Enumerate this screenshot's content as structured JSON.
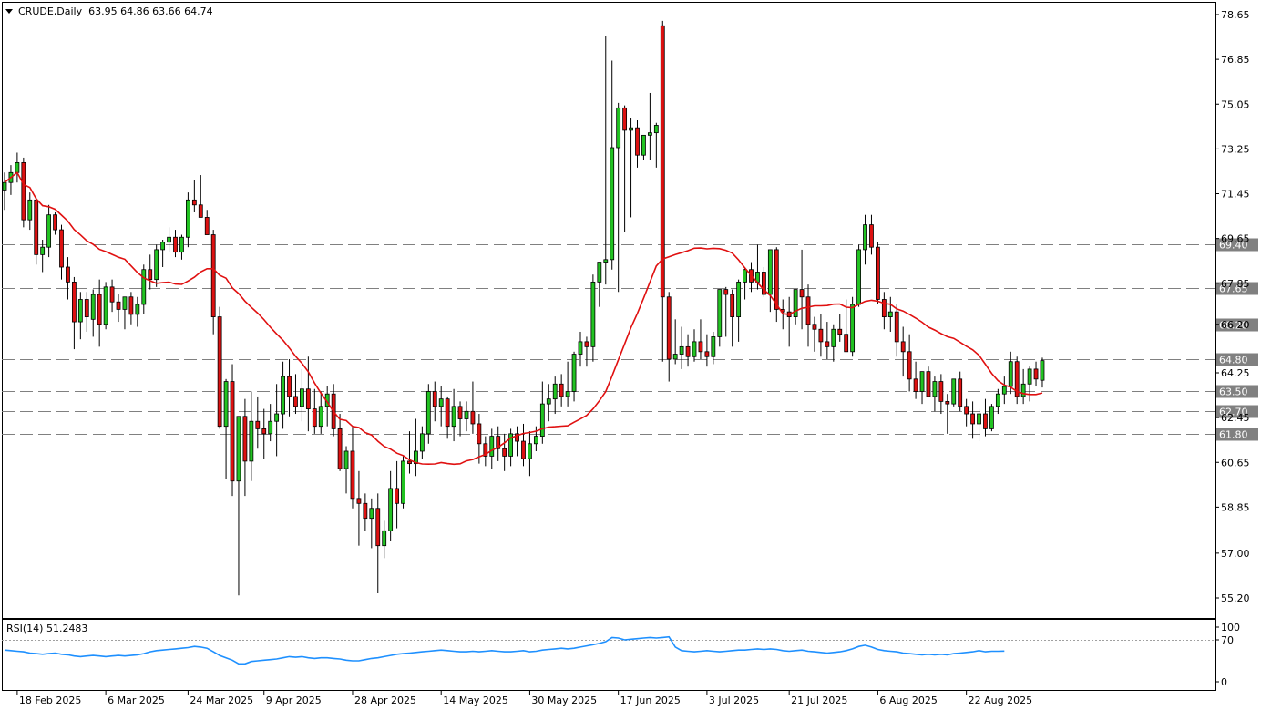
{
  "header": {
    "symbol_timeframe": "CRUDE,Daily",
    "ohlc": "63.95 64.86 63.66 64.74"
  },
  "rsi_panel": {
    "label": "RSI(14) 51.2483",
    "value": 51.2483
  },
  "colors": {
    "bull": "#22c322",
    "bear": "#dd1111",
    "wick": "#000000",
    "ma": "#e01010",
    "rsi": "#1e90ff",
    "hline": "#808080",
    "tag_bg": "#808080",
    "tag_text": "#ffffff"
  },
  "chart_data": [
    {
      "type": "candlestick",
      "title": "CRUDE,Daily",
      "x_tick_labels": [
        "18 Feb 2025",
        "6 Mar 2025",
        "24 Mar 2025",
        "9 Apr 2025",
        "28 Apr 2025",
        "14 May 2025",
        "30 May 2025",
        "17 Jun 2025",
        "3 Jul 2025",
        "21 Jul 2025",
        "6 Aug 2025",
        "22 Aug 2025"
      ],
      "x_tick_bar_index": [
        2,
        16,
        29,
        41,
        55,
        69,
        83,
        97,
        111,
        124,
        138,
        152
      ],
      "y_tick_labels": [
        "78.65",
        "76.85",
        "75.05",
        "73.25",
        "71.45",
        "69.65",
        "67.85",
        "66.20",
        "64.25",
        "62.45",
        "60.65",
        "58.85",
        "57.00",
        "55.20"
      ],
      "ylim": [
        54.55,
        79.3
      ],
      "horizontal_levels": [
        "69.40",
        "67.65",
        "66.20",
        "64.80",
        "63.50",
        "62.70",
        "61.80"
      ],
      "bars": [
        [
          71.6,
          72.3,
          70.8,
          71.9
        ],
        [
          71.9,
          72.6,
          71.4,
          72.3
        ],
        [
          72.3,
          73.1,
          71.9,
          72.7
        ],
        [
          72.7,
          72.9,
          70.1,
          70.4
        ],
        [
          70.4,
          71.5,
          70.0,
          71.2
        ],
        [
          71.2,
          71.3,
          68.6,
          69.0
        ],
        [
          69.0,
          69.6,
          68.3,
          69.3
        ],
        [
          69.3,
          71.0,
          68.9,
          70.6
        ],
        [
          70.6,
          70.7,
          69.8,
          70.0
        ],
        [
          70.0,
          70.2,
          68.0,
          68.5
        ],
        [
          68.5,
          68.9,
          67.2,
          67.9
        ],
        [
          67.9,
          68.1,
          65.2,
          66.3
        ],
        [
          66.3,
          67.5,
          65.6,
          67.2
        ],
        [
          67.2,
          67.5,
          65.9,
          66.5
        ],
        [
          66.4,
          67.6,
          65.7,
          67.4
        ],
        [
          67.4,
          68.0,
          65.3,
          66.2
        ],
        [
          66.2,
          67.9,
          66.0,
          67.7
        ],
        [
          67.7,
          68.0,
          66.7,
          67.1
        ],
        [
          67.1,
          67.4,
          66.3,
          66.8
        ],
        [
          66.8,
          67.2,
          66.0,
          67.3
        ],
        [
          67.3,
          67.5,
          66.2,
          66.6
        ],
        [
          66.6,
          67.3,
          66.1,
          67.0
        ],
        [
          67.0,
          68.6,
          66.6,
          68.4
        ],
        [
          68.4,
          69.0,
          67.6,
          68.0
        ],
        [
          68.0,
          69.4,
          67.7,
          69.2
        ],
        [
          69.2,
          69.6,
          68.5,
          69.5
        ],
        [
          69.5,
          70.1,
          69.1,
          69.7
        ],
        [
          69.7,
          70.0,
          68.9,
          69.1
        ],
        [
          69.1,
          69.8,
          68.8,
          69.7
        ],
        [
          69.7,
          71.5,
          69.3,
          71.2
        ],
        [
          71.2,
          72.0,
          70.7,
          71.0
        ],
        [
          71.0,
          72.2,
          70.8,
          70.5
        ],
        [
          70.5,
          70.8,
          70.0,
          69.8
        ],
        [
          69.8,
          70.0,
          65.8,
          66.5
        ],
        [
          66.5,
          66.9,
          62.0,
          62.1
        ],
        [
          62.1,
          64.0,
          60.0,
          63.9
        ],
        [
          63.9,
          64.6,
          59.3,
          59.9
        ],
        [
          59.9,
          62.3,
          55.3,
          62.5
        ],
        [
          62.5,
          63.2,
          59.3,
          60.7
        ],
        [
          60.7,
          63.5,
          59.9,
          62.3
        ],
        [
          62.3,
          63.3,
          61.2,
          62.0
        ],
        [
          62.0,
          62.8,
          60.8,
          61.8
        ],
        [
          61.8,
          63.0,
          61.5,
          62.3
        ],
        [
          62.3,
          63.8,
          60.9,
          62.6
        ],
        [
          62.6,
          64.7,
          62.0,
          64.1
        ],
        [
          64.1,
          64.8,
          62.5,
          63.3
        ],
        [
          63.3,
          64.2,
          62.6,
          62.9
        ],
        [
          62.9,
          64.4,
          62.3,
          63.6
        ],
        [
          63.6,
          64.9,
          61.9,
          62.8
        ],
        [
          62.8,
          63.6,
          61.8,
          62.1
        ],
        [
          62.1,
          63.5,
          61.8,
          62.9
        ],
        [
          62.9,
          63.7,
          62.1,
          63.4
        ],
        [
          63.4,
          63.8,
          61.7,
          62.0
        ],
        [
          62.0,
          62.6,
          60.3,
          60.4
        ],
        [
          60.4,
          61.3,
          59.4,
          61.1
        ],
        [
          61.1,
          62.1,
          58.8,
          59.2
        ],
        [
          59.2,
          60.3,
          57.3,
          59.0
        ],
        [
          59.0,
          59.4,
          57.9,
          58.4
        ],
        [
          58.4,
          59.2,
          57.2,
          58.8
        ],
        [
          58.8,
          59.4,
          55.4,
          57.3
        ],
        [
          57.3,
          58.3,
          56.8,
          57.9
        ],
        [
          57.9,
          60.3,
          57.5,
          59.6
        ],
        [
          59.6,
          60.7,
          58.0,
          59.0
        ],
        [
          59.0,
          60.9,
          58.8,
          60.7
        ],
        [
          60.7,
          61.9,
          60.2,
          60.6
        ],
        [
          60.6,
          62.4,
          60.1,
          61.1
        ],
        [
          61.1,
          62.1,
          60.8,
          61.8
        ],
        [
          61.8,
          63.8,
          61.4,
          63.5
        ],
        [
          63.5,
          63.9,
          62.3,
          62.9
        ],
        [
          62.9,
          63.7,
          62.1,
          63.2
        ],
        [
          63.2,
          63.3,
          61.6,
          62.1
        ],
        [
          62.1,
          63.6,
          61.5,
          62.9
        ],
        [
          62.9,
          63.1,
          61.7,
          62.4
        ],
        [
          62.4,
          63.1,
          61.9,
          62.7
        ],
        [
          62.7,
          63.9,
          61.8,
          62.2
        ],
        [
          62.2,
          62.6,
          60.6,
          61.4
        ],
        [
          61.4,
          61.7,
          60.5,
          60.9
        ],
        [
          60.9,
          62.0,
          60.4,
          61.7
        ],
        [
          61.7,
          62.1,
          60.7,
          61.2
        ],
        [
          61.2,
          61.8,
          60.3,
          60.9
        ],
        [
          60.9,
          62.0,
          60.5,
          61.8
        ],
        [
          61.8,
          62.1,
          60.9,
          61.5
        ],
        [
          61.5,
          62.2,
          60.5,
          60.8
        ],
        [
          60.8,
          61.9,
          60.1,
          61.4
        ],
        [
          61.4,
          62.1,
          61.1,
          61.7
        ],
        [
          61.7,
          63.9,
          61.4,
          63.0
        ],
        [
          63.0,
          63.8,
          62.3,
          63.2
        ],
        [
          63.2,
          64.1,
          62.6,
          63.8
        ],
        [
          63.8,
          64.2,
          62.9,
          63.3
        ],
        [
          63.3,
          64.7,
          62.9,
          63.5
        ],
        [
          63.5,
          65.1,
          63.1,
          65.0
        ],
        [
          65.0,
          65.9,
          64.5,
          65.5
        ],
        [
          65.5,
          65.7,
          64.5,
          65.3
        ],
        [
          65.3,
          68.2,
          64.7,
          67.9
        ],
        [
          67.9,
          68.6,
          66.9,
          68.7
        ],
        [
          68.7,
          77.8,
          67.8,
          68.8
        ],
        [
          68.8,
          76.8,
          68.4,
          73.3
        ],
        [
          73.3,
          75.1,
          67.5,
          74.9
        ],
        [
          74.9,
          75.0,
          69.9,
          74.0
        ],
        [
          74.0,
          74.5,
          70.5,
          74.1
        ],
        [
          74.1,
          74.4,
          72.5,
          73.0
        ],
        [
          73.0,
          73.8,
          72.8,
          73.8
        ],
        [
          73.8,
          75.5,
          72.8,
          73.9
        ],
        [
          73.9,
          74.3,
          72.5,
          74.2
        ],
        [
          78.2,
          78.4,
          64.7,
          67.3
        ],
        [
          67.3,
          67.5,
          63.9,
          64.8
        ],
        [
          64.8,
          66.4,
          64.6,
          65.0
        ],
        [
          65.0,
          66.1,
          64.4,
          65.3
        ],
        [
          65.3,
          65.8,
          64.5,
          64.9
        ],
        [
          64.9,
          66.0,
          64.7,
          65.5
        ],
        [
          65.5,
          66.4,
          64.8,
          65.1
        ],
        [
          65.1,
          65.8,
          64.5,
          64.9
        ],
        [
          64.9,
          65.9,
          64.6,
          65.7
        ],
        [
          65.7,
          67.6,
          65.3,
          67.6
        ],
        [
          67.6,
          67.7,
          65.7,
          67.4
        ],
        [
          67.4,
          67.6,
          65.3,
          66.5
        ],
        [
          66.5,
          68.0,
          65.5,
          67.9
        ],
        [
          67.9,
          68.5,
          67.2,
          68.4
        ],
        [
          68.4,
          68.7,
          67.5,
          67.9
        ],
        [
          67.9,
          69.4,
          67.6,
          68.3
        ],
        [
          68.3,
          68.5,
          67.3,
          67.4
        ],
        [
          67.4,
          69.1,
          66.7,
          69.2
        ],
        [
          69.2,
          69.3,
          66.3,
          66.8
        ],
        [
          66.8,
          67.2,
          66.0,
          66.7
        ],
        [
          66.7,
          67.3,
          65.3,
          66.5
        ],
        [
          66.5,
          67.5,
          66.2,
          67.6
        ],
        [
          67.6,
          69.2,
          66.0,
          67.3
        ],
        [
          67.3,
          67.8,
          65.3,
          66.2
        ],
        [
          66.2,
          66.5,
          65.1,
          66.0
        ],
        [
          66.0,
          66.6,
          64.9,
          65.5
        ],
        [
          65.5,
          66.3,
          64.8,
          65.3
        ],
        [
          65.3,
          66.2,
          64.7,
          66.0
        ],
        [
          66.0,
          66.6,
          65.5,
          65.8
        ],
        [
          65.8,
          67.2,
          65.1,
          65.1
        ],
        [
          65.1,
          67.3,
          64.9,
          67.0
        ],
        [
          67.0,
          69.4,
          66.9,
          69.2
        ],
        [
          69.2,
          70.6,
          68.6,
          70.2
        ],
        [
          70.2,
          70.6,
          69.0,
          69.3
        ],
        [
          69.3,
          69.5,
          67.0,
          67.2
        ],
        [
          67.2,
          67.5,
          66.0,
          66.5
        ],
        [
          66.5,
          67.3,
          65.9,
          66.7
        ],
        [
          66.7,
          67.0,
          64.9,
          65.5
        ],
        [
          65.5,
          66.1,
          64.1,
          65.1
        ],
        [
          65.1,
          65.8,
          63.5,
          64.0
        ],
        [
          64.0,
          64.7,
          63.2,
          63.5
        ],
        [
          63.5,
          64.2,
          63.0,
          64.3
        ],
        [
          64.3,
          64.5,
          63.3,
          63.3
        ],
        [
          63.3,
          64.1,
          62.7,
          63.9
        ],
        [
          63.9,
          64.2,
          62.6,
          63.1
        ],
        [
          63.1,
          63.4,
          61.8,
          63.0
        ],
        [
          63.0,
          64.0,
          62.9,
          64.0
        ],
        [
          64.0,
          64.3,
          62.7,
          62.9
        ],
        [
          62.9,
          63.2,
          62.1,
          62.6
        ],
        [
          62.6,
          63.1,
          61.6,
          62.2
        ],
        [
          62.2,
          62.8,
          61.5,
          62.6
        ],
        [
          62.6,
          63.2,
          61.7,
          62.0
        ],
        [
          62.0,
          63.0,
          61.9,
          62.9
        ],
        [
          62.9,
          63.6,
          62.6,
          63.4
        ],
        [
          63.4,
          64.1,
          63.0,
          63.7
        ],
        [
          63.7,
          65.1,
          63.4,
          64.7
        ],
        [
          64.7,
          64.9,
          63.0,
          63.3
        ],
        [
          63.3,
          64.4,
          63.0,
          63.8
        ],
        [
          63.8,
          64.5,
          63.1,
          64.4
        ],
        [
          64.4,
          64.7,
          63.7,
          64.0
        ],
        [
          63.95,
          64.86,
          63.66,
          64.74
        ]
      ],
      "bar_fields": [
        "open",
        "high",
        "low",
        "close"
      ],
      "moving_average_period": 20,
      "grid": false
    },
    {
      "type": "line",
      "title": "RSI(14) 51.2483",
      "ylim": [
        0,
        100
      ],
      "y_tick_labels": [
        "100",
        "70",
        "0"
      ],
      "reference_level": 70,
      "rsi_start_index": 0,
      "values": [
        53,
        52,
        51,
        50,
        48,
        47,
        46,
        47,
        48,
        46,
        45,
        43,
        42,
        43,
        44,
        43,
        42,
        43,
        44,
        43,
        44,
        45,
        47,
        50,
        52,
        53,
        54,
        55,
        56,
        57,
        59,
        58,
        56,
        50,
        44,
        40,
        36,
        30,
        30,
        34,
        35,
        36,
        37,
        38,
        40,
        42,
        41,
        42,
        40,
        39,
        40,
        40,
        39,
        38,
        36,
        35,
        35,
        37,
        39,
        40,
        42,
        44,
        46,
        47,
        48,
        49,
        50,
        51,
        52,
        53,
        52,
        51,
        50,
        50,
        51,
        50,
        51,
        52,
        51,
        50,
        50,
        51,
        52,
        50,
        51,
        53,
        54,
        55,
        56,
        55,
        56,
        58,
        60,
        62,
        64,
        67,
        74,
        73,
        70,
        71,
        72,
        73,
        74,
        73,
        74,
        75,
        58,
        52,
        51,
        50,
        51,
        52,
        51,
        50,
        51,
        52,
        53,
        53,
        54,
        55,
        54,
        55,
        54,
        52,
        51,
        52,
        53,
        51,
        50,
        49,
        48,
        49,
        50,
        52,
        55,
        59,
        61,
        58,
        54,
        52,
        51,
        50,
        48,
        47,
        46,
        45,
        46,
        45,
        46,
        45,
        47,
        48,
        49,
        50,
        52,
        50,
        51,
        51,
        51.2483
      ],
      "grid": false
    }
  ]
}
